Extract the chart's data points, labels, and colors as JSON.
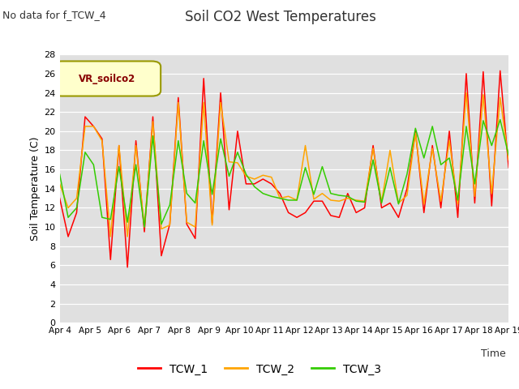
{
  "title": "Soil CO2 West Temperatures",
  "subtitle": "No data for f_TCW_4",
  "ylabel": "Soil Temperature (C)",
  "xlabel": "Time",
  "ylim": [
    0,
    28
  ],
  "yticks": [
    0,
    2,
    4,
    6,
    8,
    10,
    12,
    14,
    16,
    18,
    20,
    22,
    24,
    26,
    28
  ],
  "xtick_labels": [
    "Apr 4",
    "Apr 5",
    "Apr 6",
    "Apr 7",
    "Apr 8",
    "Apr 9",
    "Apr 10",
    "Apr 11",
    "Apr 12",
    "Apr 13",
    "Apr 14",
    "Apr 15",
    "Apr 16",
    "Apr 17",
    "Apr 18",
    "Apr 19"
  ],
  "legend_label": "VR_soilco2",
  "legend_entries": [
    "TCW_1",
    "TCW_2",
    "TCW_3"
  ],
  "line_colors": [
    "#ff0000",
    "#ffa500",
    "#33cc00"
  ],
  "background_color": "#ffffff",
  "plot_bg_color": "#e0e0e0",
  "grid_color": "#ffffff",
  "title_color": "#333333",
  "tcw1": [
    13.0,
    9.0,
    11.5,
    21.5,
    20.5,
    19.2,
    6.6,
    18.5,
    5.8,
    19.0,
    9.5,
    21.5,
    7.0,
    10.3,
    23.5,
    10.3,
    8.8,
    25.5,
    10.4,
    24.0,
    11.8,
    20.0,
    14.5,
    14.5,
    15.0,
    14.5,
    13.5,
    11.5,
    11.0,
    11.5,
    12.7,
    12.7,
    11.2,
    11.0,
    13.5,
    11.5,
    12.0,
    18.5,
    12.0,
    12.5,
    11.0,
    14.0,
    20.0,
    11.5,
    18.5,
    12.0,
    20.0,
    11.0,
    26.0,
    12.5,
    26.2,
    12.2,
    26.3,
    16.2
  ],
  "tcw2": [
    14.5,
    12.0,
    13.0,
    20.5,
    20.5,
    19.0,
    9.0,
    18.5,
    9.0,
    18.5,
    10.0,
    21.0,
    9.8,
    10.2,
    23.0,
    10.5,
    10.0,
    23.0,
    10.2,
    23.0,
    16.8,
    16.7,
    15.3,
    15.0,
    15.4,
    15.2,
    13.0,
    13.2,
    12.8,
    18.5,
    12.9,
    13.5,
    12.8,
    12.7,
    13.0,
    12.8,
    12.7,
    18.2,
    12.6,
    18.0,
    12.5,
    13.3,
    19.8,
    12.4,
    18.2,
    12.7,
    19.0,
    12.4,
    24.0,
    13.2,
    23.8,
    13.5,
    23.5,
    17.0
  ],
  "tcw3": [
    15.5,
    11.0,
    12.0,
    17.8,
    16.5,
    11.0,
    10.8,
    16.3,
    10.5,
    16.5,
    10.0,
    19.5,
    10.3,
    12.3,
    19.0,
    13.5,
    12.5,
    19.0,
    13.4,
    19.2,
    15.3,
    17.8,
    15.5,
    14.2,
    13.5,
    13.2,
    13.0,
    12.8,
    12.8,
    16.2,
    13.4,
    16.3,
    13.5,
    13.3,
    13.2,
    12.7,
    12.6,
    17.0,
    12.5,
    16.2,
    12.4,
    15.5,
    20.3,
    17.2,
    20.5,
    16.5,
    17.2,
    12.8,
    20.5,
    14.5,
    21.1,
    18.5,
    21.2,
    17.5
  ]
}
